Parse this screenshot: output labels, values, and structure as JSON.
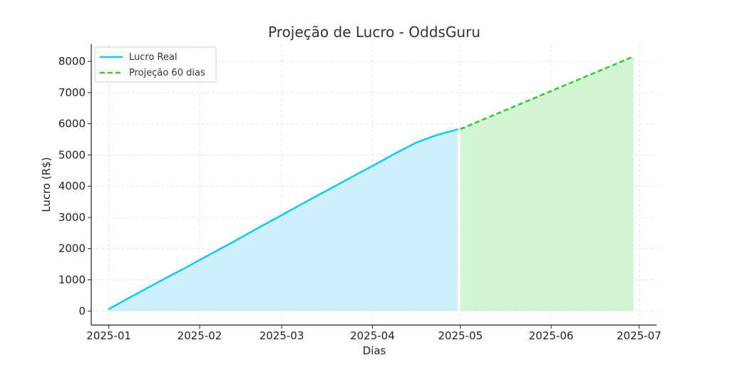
{
  "chart_data": {
    "type": "line",
    "title": "Projeção de Lucro - OddsGuru",
    "xlabel": "Dias",
    "ylabel": "Lucro (R$)",
    "x_axis_type": "date",
    "xlim": [
      "2024-12-26",
      "2025-07-07"
    ],
    "ylim": [
      -450,
      8550
    ],
    "x_ticks": [
      "2025-01-01",
      "2025-02-01",
      "2025-03-01",
      "2025-04-01",
      "2025-05-01",
      "2025-06-01",
      "2025-07-01"
    ],
    "x_tick_labels": [
      "2025-01",
      "2025-02",
      "2025-03",
      "2025-04",
      "2025-05",
      "2025-06",
      "2025-07"
    ],
    "y_ticks": [
      0,
      1000,
      2000,
      3000,
      4000,
      5000,
      6000,
      7000,
      8000
    ],
    "y_tick_labels": [
      "0",
      "1000",
      "2000",
      "3000",
      "4000",
      "5000",
      "6000",
      "7000",
      "8000"
    ],
    "grid": true,
    "legend_position": "top-left",
    "series": [
      {
        "name": "Lucro Real",
        "style": "solid",
        "color": "#1AC8F5",
        "fill_color": "#CDF0FB",
        "x": [
          "2025-01-01",
          "2025-01-08",
          "2025-01-15",
          "2025-01-22",
          "2025-01-29",
          "2025-02-05",
          "2025-02-12",
          "2025-02-19",
          "2025-02-26",
          "2025-03-05",
          "2025-03-12",
          "2025-03-19",
          "2025-03-26",
          "2025-04-02",
          "2025-04-09",
          "2025-04-16",
          "2025-04-23",
          "2025-04-30"
        ],
        "y": [
          60,
          430,
          780,
          1130,
          1480,
          1840,
          2190,
          2560,
          2920,
          3280,
          3640,
          3990,
          4350,
          4700,
          5060,
          5400,
          5640,
          5820
        ]
      },
      {
        "name": "Projeção 60 dias",
        "style": "dashed",
        "color": "#33CC33",
        "fill_color": "#D4F5D4",
        "x": [
          "2025-05-01",
          "2025-06-29"
        ],
        "y": [
          5830,
          8150
        ]
      }
    ]
  }
}
